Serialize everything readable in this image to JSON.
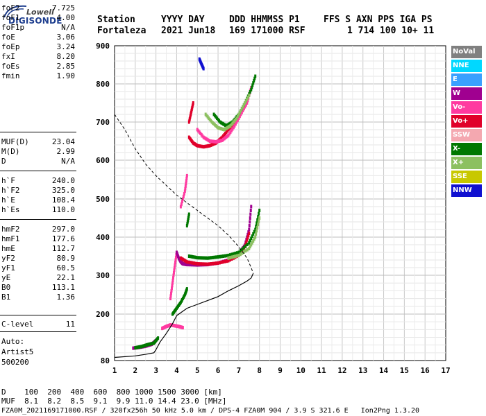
{
  "logo": {
    "line1": "Lowell",
    "line2": "DIGISONDE"
  },
  "header": {
    "row1": [
      "Station",
      "YYYY DAY",
      "DDD HHMMSS P1",
      "FFS S AXN PPS IGA PS"
    ],
    "row2": [
      "Fortaleza",
      "2021 Jun18",
      "169 171000 RSF",
      "1 714 100 10+ 11"
    ]
  },
  "params": [
    {
      "label": "foF2",
      "value": "7.725"
    },
    {
      "label": "foF1",
      "value": "4.00"
    },
    {
      "label": "foF1p",
      "value": "N/A"
    },
    {
      "label": "foE",
      "value": "3.06"
    },
    {
      "label": "foEp",
      "value": "3.24"
    },
    {
      "label": "fxI",
      "value": "8.20"
    },
    {
      "label": "foEs",
      "value": "2.85"
    },
    {
      "label": "fmin",
      "value": "1.90"
    },
    {
      "label": "MUF(D)",
      "value": "23.04"
    },
    {
      "label": "M(D)",
      "value": "2.99"
    },
    {
      "label": "D",
      "value": "N/A"
    },
    {
      "label": "h`F",
      "value": "240.0"
    },
    {
      "label": "h`F2",
      "value": "325.0"
    },
    {
      "label": "h`E",
      "value": "108.4"
    },
    {
      "label": "h`Es",
      "value": "110.0"
    },
    {
      "label": "hmF2",
      "value": "297.0"
    },
    {
      "label": "hmF1",
      "value": "177.6"
    },
    {
      "label": "hmE",
      "value": "112.7"
    },
    {
      "label": "yF2",
      "value": "80.9"
    },
    {
      "label": "yF1",
      "value": "60.5"
    },
    {
      "label": "yE",
      "value": "22.1"
    },
    {
      "label": "B0",
      "value": "113.1"
    },
    {
      "label": "B1",
      "value": "1.36"
    },
    {
      "label": "C-level",
      "value": "11"
    }
  ],
  "autoscale": {
    "line1": "Auto:",
    "line2": "Artist5",
    "line3": "500200"
  },
  "legend": [
    {
      "label": "NoVal",
      "color": "#808080"
    },
    {
      "label": "NNE",
      "color": "#00d8ff"
    },
    {
      "label": "E",
      "color": "#3aa0ff"
    },
    {
      "label": "W",
      "color": "#a00090"
    },
    {
      "label": "Vo-",
      "color": "#ff3aa0"
    },
    {
      "label": "Vo+",
      "color": "#e0002a"
    },
    {
      "label": "SSW",
      "color": "#f4a8b0"
    },
    {
      "label": "X-",
      "color": "#007800"
    },
    {
      "label": "X+",
      "color": "#8cc060"
    },
    {
      "label": "SSE",
      "color": "#c8c800"
    },
    {
      "label": "NNW",
      "color": "#1010d0"
    }
  ],
  "bottom": {
    "d_row": "D    100  200  400  600  800 1000 1500 3000 [km]",
    "muf_row": "MUF  8.1  8.2  8.5  9.1  9.9 11.0 14.4 23.0 [MHz]",
    "footer": "FZA0M_2021169171000.RSF / 320fx256h 50 kHz 5.0 km / DPS-4 FZA0M 904 / 3.9 S 321.6 E   Ion2Png 1.3.20"
  },
  "chart_data": {
    "type": "scatter",
    "xlim": [
      1,
      17
    ],
    "ylim": [
      80,
      900
    ],
    "xticks": [
      1,
      2,
      3,
      4,
      5,
      6,
      7,
      8,
      9,
      10,
      11,
      12,
      13,
      14,
      15,
      16,
      17
    ],
    "yticks": [
      80,
      200,
      300,
      400,
      500,
      600,
      700,
      800,
      900
    ],
    "grid": true,
    "legend_position": "right",
    "profile": {
      "x": [
        1.0,
        2.0,
        2.5,
        2.9,
        3.0,
        3.2,
        3.5,
        3.8,
        4.0,
        4.5,
        5.0,
        5.5,
        6.0,
        6.5,
        7.0,
        7.4,
        7.6,
        7.7
      ],
      "y": [
        88,
        92,
        96,
        100,
        108,
        128,
        150,
        175,
        196,
        215,
        225,
        235,
        245,
        260,
        273,
        285,
        293,
        305
      ]
    },
    "continuation": {
      "x": [
        1.0,
        1.5,
        2.0,
        2.5,
        3.0,
        3.5,
        4.0,
        4.5,
        5.0,
        5.5,
        6.0,
        6.5,
        7.0,
        7.4,
        7.6,
        7.7
      ],
      "y": [
        720,
        680,
        630,
        590,
        560,
        535,
        510,
        490,
        470,
        450,
        430,
        405,
        375,
        345,
        320,
        305
      ]
    },
    "traces": [
      {
        "mode": "W",
        "x": [
          1.9,
          2.2,
          2.5,
          2.8,
          3.0
        ],
        "y": [
          112,
          114,
          117,
          122,
          132
        ]
      },
      {
        "mode": "X-",
        "x": [
          2.0,
          2.3,
          2.6,
          2.9,
          3.1
        ],
        "y": [
          113,
          116,
          121,
          125,
          138
        ]
      },
      {
        "mode": "Vo-",
        "x": [
          3.3,
          3.5,
          3.7,
          3.9,
          4.1,
          4.3
        ],
        "y": [
          163,
          168,
          172,
          170,
          168,
          165
        ]
      },
      {
        "mode": "X-",
        "x": [
          3.8,
          4.0,
          4.2,
          4.4,
          4.5
        ],
        "y": [
          200,
          215,
          230,
          250,
          265
        ]
      },
      {
        "mode": "Vo-",
        "x": [
          3.7,
          3.8,
          3.9,
          4.0
        ],
        "y": [
          240,
          280,
          320,
          360
        ]
      },
      {
        "mode": "W",
        "x": [
          4.0,
          4.1,
          4.2,
          4.3,
          4.5,
          5.0,
          5.5,
          6.0,
          6.5,
          7.0,
          7.3,
          7.5,
          7.6
        ],
        "y": [
          360,
          345,
          335,
          330,
          328,
          327,
          328,
          332,
          340,
          355,
          380,
          420,
          480
        ]
      },
      {
        "mode": "Vo+",
        "x": [
          4.2,
          4.5,
          5.0,
          5.5,
          6.0,
          6.5,
          7.0,
          7.3,
          7.5
        ],
        "y": [
          345,
          335,
          330,
          329,
          332,
          338,
          352,
          375,
          410
        ]
      },
      {
        "mode": "X-",
        "x": [
          4.6,
          5.0,
          5.5,
          6.0,
          6.5,
          7.0,
          7.5,
          7.8,
          8.0
        ],
        "y": [
          350,
          346,
          345,
          348,
          352,
          360,
          385,
          420,
          470
        ]
      },
      {
        "mode": "X+",
        "x": [
          6.5,
          7.0,
          7.5,
          7.8,
          8.0
        ],
        "y": [
          345,
          352,
          370,
          400,
          450
        ]
      },
      {
        "mode": "Vo-",
        "x": [
          4.2,
          4.4,
          4.5
        ],
        "y": [
          480,
          520,
          560
        ]
      },
      {
        "mode": "X-",
        "x": [
          4.5,
          4.6
        ],
        "y": [
          430,
          460
        ]
      },
      {
        "mode": "Vo+",
        "x": [
          4.6,
          4.8,
          5.0,
          5.3,
          5.6,
          5.9,
          6.2,
          6.5,
          6.8,
          7.1,
          7.4
        ],
        "y": [
          660,
          645,
          638,
          635,
          638,
          645,
          660,
          680,
          700,
          725,
          755
        ]
      },
      {
        "mode": "Vo-",
        "x": [
          5.0,
          5.3,
          5.6,
          5.9,
          6.2,
          6.5,
          6.8,
          7.1,
          7.4,
          7.6
        ],
        "y": [
          680,
          660,
          650,
          648,
          652,
          665,
          690,
          720,
          750,
          790
        ]
      },
      {
        "mode": "X-",
        "x": [
          5.8,
          6.1,
          6.4,
          6.7,
          7.0,
          7.3,
          7.6,
          7.8
        ],
        "y": [
          720,
          700,
          690,
          700,
          720,
          750,
          785,
          820
        ]
      },
      {
        "mode": "X+",
        "x": [
          5.4,
          5.7,
          6.0,
          6.3,
          6.6,
          6.9,
          7.2,
          7.5
        ],
        "y": [
          720,
          700,
          685,
          680,
          690,
          710,
          740,
          770
        ]
      },
      {
        "mode": "Vo+",
        "x": [
          4.6,
          4.7,
          4.8
        ],
        "y": [
          700,
          725,
          750
        ]
      },
      {
        "mode": "NNW",
        "x": [
          5.1,
          5.2,
          5.3
        ],
        "y": [
          865,
          852,
          840
        ]
      }
    ]
  }
}
